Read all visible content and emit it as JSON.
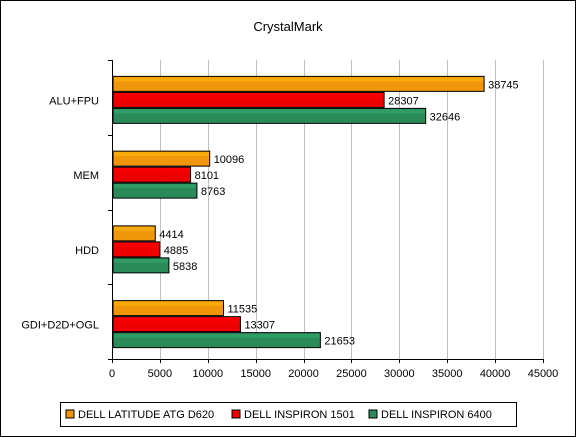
{
  "chart_data": {
    "type": "bar",
    "orientation": "horizontal",
    "title": "CrystalMark",
    "categories": [
      "ALU+FPU",
      "MEM",
      "HDD",
      "GDI+D2D+OGL"
    ],
    "series": [
      {
        "name": "DELL LATITUDE ATG D620",
        "color": "#f0960a",
        "values": [
          38745,
          10096,
          4414,
          11535
        ]
      },
      {
        "name": "DELL INSPIRON 1501",
        "color": "#ee0000",
        "values": [
          28307,
          8101,
          4885,
          13307
        ]
      },
      {
        "name": "DELL INSPIRON 6400",
        "color": "#2a8a5a",
        "values": [
          32646,
          8763,
          5838,
          21653
        ]
      }
    ],
    "xlim": [
      0,
      45000
    ],
    "xticks": [
      0,
      5000,
      10000,
      15000,
      20000,
      25000,
      30000,
      35000,
      40000,
      45000
    ],
    "grid": true,
    "legend_position": "bottom"
  }
}
